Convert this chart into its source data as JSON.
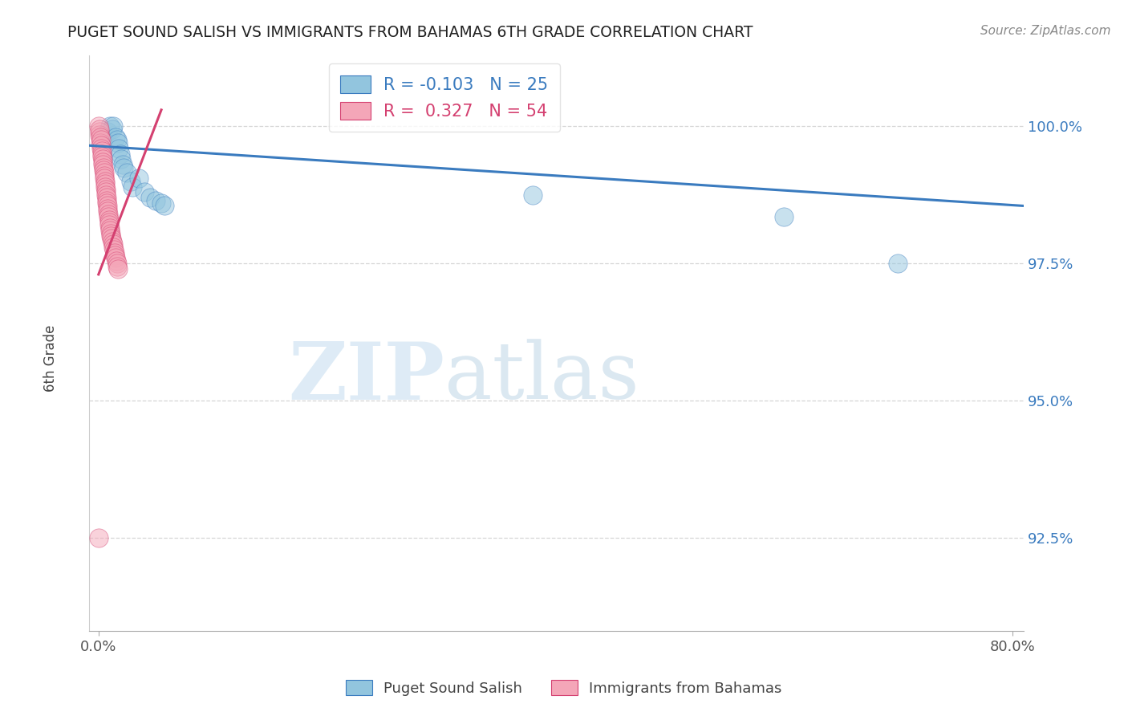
{
  "title": "PUGET SOUND SALISH VS IMMIGRANTS FROM BAHAMAS 6TH GRADE CORRELATION CHART",
  "source": "Source: ZipAtlas.com",
  "ylabel": "6th Grade",
  "ytick_labels": [
    "92.5%",
    "95.0%",
    "97.5%",
    "100.0%"
  ],
  "ytick_values": [
    92.5,
    95.0,
    97.5,
    100.0
  ],
  "ymin": 90.8,
  "ymax": 101.3,
  "xmin": -0.8,
  "xmax": 81.0,
  "blue_r": "-0.103",
  "blue_n": "25",
  "pink_r": "0.327",
  "pink_n": "54",
  "blue_color": "#92c5de",
  "pink_color": "#f4a6b8",
  "blue_line_color": "#3a7bbf",
  "pink_line_color": "#d44070",
  "watermark_zip": "ZIP",
  "watermark_atlas": "atlas",
  "blue_scatter_x": [
    0.5,
    0.8,
    1.0,
    1.2,
    1.3,
    1.5,
    1.6,
    1.7,
    1.8,
    1.9,
    2.0,
    2.1,
    2.2,
    2.5,
    2.8,
    3.0,
    3.5,
    4.0,
    4.5,
    5.0,
    5.5,
    5.8,
    38.0,
    60.0,
    70.0
  ],
  "blue_scatter_y": [
    99.85,
    99.9,
    100.0,
    99.95,
    100.0,
    99.8,
    99.75,
    99.7,
    99.6,
    99.5,
    99.4,
    99.3,
    99.25,
    99.15,
    99.0,
    98.9,
    99.05,
    98.8,
    98.7,
    98.65,
    98.6,
    98.55,
    98.75,
    98.35,
    97.5
  ],
  "pink_scatter_x": [
    0.05,
    0.08,
    0.1,
    0.12,
    0.15,
    0.18,
    0.2,
    0.22,
    0.25,
    0.28,
    0.3,
    0.32,
    0.35,
    0.38,
    0.4,
    0.42,
    0.45,
    0.48,
    0.5,
    0.52,
    0.55,
    0.58,
    0.6,
    0.62,
    0.65,
    0.68,
    0.7,
    0.72,
    0.75,
    0.78,
    0.8,
    0.82,
    0.85,
    0.88,
    0.9,
    0.92,
    0.95,
    0.98,
    1.0,
    1.05,
    1.1,
    1.15,
    1.2,
    1.25,
    1.3,
    1.35,
    1.4,
    1.45,
    1.5,
    1.55,
    1.6,
    1.65,
    1.7,
    0.05
  ],
  "pink_scatter_y": [
    100.0,
    99.9,
    99.85,
    99.95,
    99.8,
    99.7,
    99.75,
    99.65,
    99.6,
    99.55,
    99.5,
    99.45,
    99.4,
    99.35,
    99.3,
    99.25,
    99.2,
    99.15,
    99.1,
    99.05,
    99.0,
    98.95,
    98.9,
    98.85,
    98.8,
    98.75,
    98.7,
    98.65,
    98.6,
    98.55,
    98.5,
    98.45,
    98.4,
    98.35,
    98.3,
    98.25,
    98.2,
    98.15,
    98.1,
    98.05,
    98.0,
    97.95,
    97.9,
    97.85,
    97.8,
    97.75,
    97.7,
    97.65,
    97.6,
    97.55,
    97.5,
    97.45,
    97.4,
    92.5
  ],
  "blue_trendline_x": [
    -0.8,
    81.0
  ],
  "blue_trendline_y": [
    99.65,
    98.55
  ],
  "pink_trendline_x": [
    0.0,
    5.5
  ],
  "pink_trendline_y": [
    97.3,
    100.3
  ]
}
